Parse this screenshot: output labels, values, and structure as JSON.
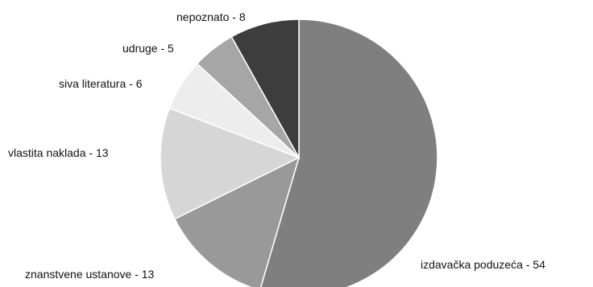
{
  "chart_data": {
    "type": "pie",
    "title": "",
    "slices": [
      {
        "label": "izdavačka poduzeća",
        "value": 54,
        "color": "#7f7f7f",
        "display": "izdavačka poduzeća - 54"
      },
      {
        "label": "znanstvene ustanove",
        "value": 13,
        "color": "#999999",
        "display": "znanstvene ustanove - 13"
      },
      {
        "label": "vlastita naklada",
        "value": 13,
        "color": "#d6d6d6",
        "display": "vlastita naklada - 13"
      },
      {
        "label": "siva literatura",
        "value": 6,
        "color": "#ededed",
        "display": "siva literatura - 6"
      },
      {
        "label": "udruge",
        "value": 5,
        "color": "#a6a6a6",
        "display": "udruge - 5"
      },
      {
        "label": "nepoznato",
        "value": 8,
        "color": "#3d3d3d",
        "display": "nepoznato - 8"
      }
    ],
    "start_angle": "12 o'clock",
    "direction": "clockwise",
    "legend": "none"
  }
}
